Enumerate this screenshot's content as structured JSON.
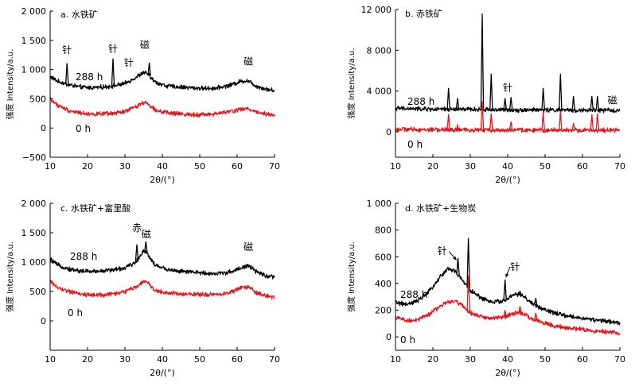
{
  "chart_data": [
    {
      "id": "a",
      "type": "line",
      "title": "a. 水铁矿",
      "xlabel": "2θ/(°)",
      "ylabel": "强度 Intensity/a.u.",
      "xlim": [
        10,
        70
      ],
      "ylim": [
        -500,
        2000
      ],
      "xticks": [
        10,
        20,
        30,
        40,
        50,
        60,
        70
      ],
      "yticks": [
        -500,
        0,
        500,
        1000,
        1500,
        2000
      ],
      "ytick_labels": [
        "−500",
        "0",
        "500",
        "1 000",
        "1 500",
        "2 000"
      ],
      "series": [
        {
          "name": "288 h",
          "color": "#000000",
          "points": [
            [
              10,
              880
            ],
            [
              12,
              800
            ],
            [
              15,
              740
            ],
            [
              18,
              700
            ],
            [
              21,
              690
            ],
            [
              24,
              700
            ],
            [
              27,
              720
            ],
            [
              30,
              760
            ],
            [
              33,
              870
            ],
            [
              35,
              950
            ],
            [
              36,
              930
            ],
            [
              38,
              790
            ],
            [
              41,
              720
            ],
            [
              45,
              700
            ],
            [
              50,
              680
            ],
            [
              54,
              680
            ],
            [
              58,
              730
            ],
            [
              61,
              800
            ],
            [
              63,
              810
            ],
            [
              65,
              720
            ],
            [
              68,
              660
            ],
            [
              70,
              640
            ]
          ],
          "peaks": [
            [
              14.5,
              1110
            ],
            [
              26.8,
              1190
            ],
            [
              36.5,
              1120
            ]
          ]
        },
        {
          "name": "0 h",
          "color": "#e8141b",
          "points": [
            [
              10,
              500
            ],
            [
              12,
              390
            ],
            [
              15,
              300
            ],
            [
              18,
              260
            ],
            [
              21,
              240
            ],
            [
              24,
              240
            ],
            [
              27,
              250
            ],
            [
              30,
              280
            ],
            [
              33,
              370
            ],
            [
              35,
              440
            ],
            [
              36,
              420
            ],
            [
              38,
              320
            ],
            [
              41,
              260
            ],
            [
              45,
              240
            ],
            [
              50,
              230
            ],
            [
              54,
              240
            ],
            [
              58,
              280
            ],
            [
              61,
              320
            ],
            [
              63,
              330
            ],
            [
              65,
              280
            ],
            [
              68,
              240
            ],
            [
              70,
              220
            ]
          ],
          "peaks": []
        }
      ],
      "annotations": [
        {
          "text": "针",
          "x": 14.5,
          "y": 1280
        },
        {
          "text": "针",
          "x": 26.8,
          "y": 1300
        },
        {
          "text": "针",
          "x": 31,
          "y": 1060
        },
        {
          "text": "磁",
          "x": 35.3,
          "y": 1370
        },
        {
          "text": "磁",
          "x": 63,
          "y": 1080
        }
      ]
    },
    {
      "id": "b",
      "type": "line",
      "title": "b. 赤铁矿",
      "xlabel": "2θ/(°)",
      "ylabel": "强度 Intensity/a.u.",
      "xlim": [
        10,
        70
      ],
      "ylim": [
        -2500,
        12000
      ],
      "xticks": [
        10,
        20,
        30,
        40,
        50,
        60,
        70
      ],
      "yticks": [
        0,
        4000,
        8000,
        12000
      ],
      "ytick_labels": [
        "0",
        "4 000",
        "8 000",
        "12 000"
      ],
      "series": [
        {
          "name": "288 h",
          "color": "#000000",
          "points": [
            [
              10,
              2300
            ],
            [
              20,
              2200
            ],
            [
              30,
              2200
            ],
            [
              40,
              2150
            ],
            [
              50,
              2150
            ],
            [
              60,
              2100
            ],
            [
              70,
              2100
            ]
          ],
          "peaks": [
            [
              24.2,
              4300
            ],
            [
              26.6,
              3300
            ],
            [
              33.2,
              11600
            ],
            [
              35.6,
              5700
            ],
            [
              39.3,
              3300
            ],
            [
              40.9,
              3400
            ],
            [
              49.5,
              4300
            ],
            [
              54.1,
              5700
            ],
            [
              57.6,
              3500
            ],
            [
              62.5,
              3500
            ],
            [
              64.0,
              3500
            ]
          ]
        },
        {
          "name": "0 h",
          "color": "#e8141b",
          "points": [
            [
              10,
              250
            ],
            [
              20,
              200
            ],
            [
              30,
              180
            ],
            [
              40,
              170
            ],
            [
              50,
              160
            ],
            [
              60,
              150
            ],
            [
              70,
              150
            ]
          ],
          "peaks": [
            [
              24.2,
              1750
            ],
            [
              26.6,
              650
            ],
            [
              33.2,
              3000
            ],
            [
              35.6,
              1800
            ],
            [
              40.9,
              1000
            ],
            [
              49.5,
              1900
            ],
            [
              54.1,
              2000
            ],
            [
              57.6,
              850
            ],
            [
              62.5,
              1700
            ],
            [
              64.0,
              1800
            ]
          ]
        }
      ],
      "annotations": [
        {
          "text": "针",
          "x": 40,
          "y": 4000
        },
        {
          "text": "磁",
          "x": 68,
          "y": 2750
        }
      ]
    },
    {
      "id": "c",
      "type": "line",
      "title": "c. 水铁矿+富里酸",
      "xlabel": "2θ/(°)",
      "ylabel": "强度 Intensity/a.u.",
      "xlim": [
        10,
        70
      ],
      "ylim": [
        -500,
        2000
      ],
      "xticks": [
        10,
        20,
        30,
        40,
        50,
        60,
        70
      ],
      "yticks": [
        0,
        500,
        1000,
        1500,
        2000
      ],
      "ytick_labels": [
        "0",
        "500",
        "1 000",
        "1 500",
        "2 000"
      ],
      "series": [
        {
          "name": "288 h",
          "color": "#000000",
          "points": [
            [
              10,
              1050
            ],
            [
              12,
              950
            ],
            [
              15,
              880
            ],
            [
              18,
              850
            ],
            [
              21,
              840
            ],
            [
              24,
              850
            ],
            [
              27,
              870
            ],
            [
              30,
              900
            ],
            [
              33,
              1000
            ],
            [
              35,
              1200
            ],
            [
              36,
              1150
            ],
            [
              38,
              950
            ],
            [
              41,
              880
            ],
            [
              45,
              840
            ],
            [
              50,
              820
            ],
            [
              54,
              800
            ],
            [
              58,
              830
            ],
            [
              61,
              900
            ],
            [
              63,
              940
            ],
            [
              65,
              840
            ],
            [
              68,
              760
            ],
            [
              70,
              740
            ]
          ],
          "peaks": [
            [
              33.2,
              1300
            ],
            [
              35.6,
              1350
            ]
          ]
        },
        {
          "name": "0 h",
          "color": "#e8141b",
          "points": [
            [
              10,
              680
            ],
            [
              12,
              560
            ],
            [
              15,
              500
            ],
            [
              18,
              460
            ],
            [
              21,
              440
            ],
            [
              24,
              440
            ],
            [
              27,
              460
            ],
            [
              30,
              500
            ],
            [
              33,
              580
            ],
            [
              35,
              680
            ],
            [
              36,
              650
            ],
            [
              38,
              520
            ],
            [
              41,
              480
            ],
            [
              45,
              460
            ],
            [
              50,
              450
            ],
            [
              54,
              450
            ],
            [
              58,
              480
            ],
            [
              61,
              560
            ],
            [
              63,
              580
            ],
            [
              65,
              480
            ],
            [
              68,
              420
            ],
            [
              70,
              400
            ]
          ],
          "peaks": []
        }
      ],
      "annotations": [
        {
          "text": "赤",
          "x": 33.2,
          "y": 1530
        },
        {
          "text": "磁",
          "x": 35.7,
          "y": 1420
        },
        {
          "text": "磁",
          "x": 63,
          "y": 1200
        }
      ]
    },
    {
      "id": "d",
      "type": "line",
      "title": "d. 水铁矿+生物炭",
      "xlabel": "2θ/(°)",
      "ylabel": "强度 Intensity/a.u.",
      "xlim": [
        10,
        70
      ],
      "ylim": [
        -100,
        1000
      ],
      "xticks": [
        10,
        20,
        30,
        40,
        50,
        60,
        70
      ],
      "yticks": [
        0,
        200,
        400,
        600,
        800,
        1000
      ],
      "ytick_labels": [
        "0",
        "200",
        "400",
        "600",
        "800",
        "1 000"
      ],
      "series": [
        {
          "name": "288 h",
          "color": "#000000",
          "points": [
            [
              10,
              260
            ],
            [
              13,
              240
            ],
            [
              16,
              270
            ],
            [
              19,
              340
            ],
            [
              22,
              450
            ],
            [
              24,
              510
            ],
            [
              26,
              490
            ],
            [
              28,
              420
            ],
            [
              30,
              350
            ],
            [
              33,
              290
            ],
            [
              36,
              260
            ],
            [
              39,
              270
            ],
            [
              42,
              320
            ],
            [
              44,
              310
            ],
            [
              46,
              260
            ],
            [
              50,
              200
            ],
            [
              55,
              160
            ],
            [
              60,
              140
            ],
            [
              65,
              120
            ],
            [
              70,
              105
            ]
          ],
          "peaks": [
            [
              26.7,
              590
            ],
            [
              29.5,
              740
            ],
            [
              39.3,
              430
            ],
            [
              43.3,
              340
            ],
            [
              47.5,
              290
            ]
          ]
        },
        {
          "name": "0 h",
          "color": "#e8141b",
          "points": [
            [
              10,
              150
            ],
            [
              13,
              120
            ],
            [
              16,
              130
            ],
            [
              19,
              170
            ],
            [
              22,
              230
            ],
            [
              24,
              260
            ],
            [
              26,
              270
            ],
            [
              28,
              230
            ],
            [
              30,
              180
            ],
            [
              33,
              150
            ],
            [
              36,
              140
            ],
            [
              39,
              150
            ],
            [
              42,
              180
            ],
            [
              44,
              180
            ],
            [
              46,
              140
            ],
            [
              50,
              100
            ],
            [
              55,
              70
            ],
            [
              60,
              55
            ],
            [
              65,
              40
            ],
            [
              70,
              30
            ]
          ],
          "peaks": [
            [
              29.5,
              460
            ],
            [
              39.3,
              200
            ],
            [
              43.3,
              230
            ],
            [
              47.5,
              180
            ]
          ]
        }
      ],
      "annotations": [
        {
          "text": "针",
          "x": 22.5,
          "y": 620
        },
        {
          "text": "针",
          "x": 42,
          "y": 500
        }
      ]
    }
  ]
}
